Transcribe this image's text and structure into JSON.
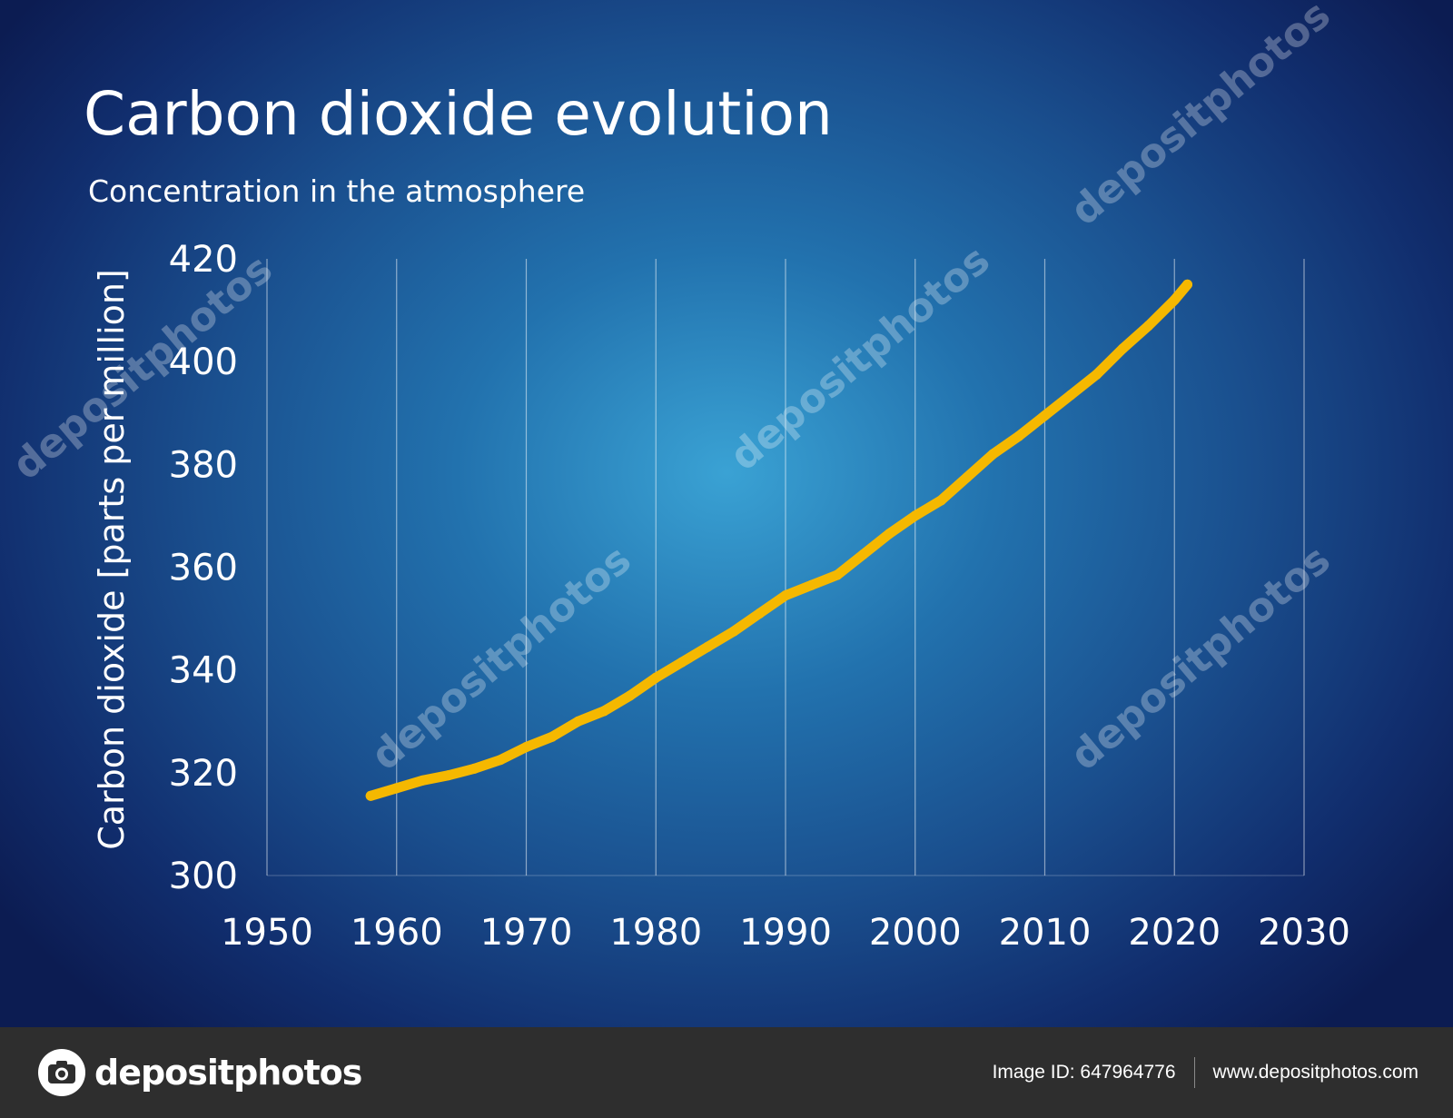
{
  "chart_data": {
    "type": "line",
    "title": "Carbon dioxide evolution",
    "subtitle": "Concentration in the atmosphere",
    "ylabel": "Carbon dioxide [parts per million]",
    "xlabel": "",
    "xlim": [
      1950,
      2030
    ],
    "ylim": [
      300,
      420
    ],
    "x_ticks": [
      1950,
      1960,
      1970,
      1980,
      1990,
      2000,
      2010,
      2020,
      2030
    ],
    "y_ticks": [
      300,
      320,
      340,
      360,
      380,
      400,
      420
    ],
    "grid": "vertical",
    "line_color": "#f5b800",
    "series": [
      {
        "x": [
          1958,
          1960,
          1962,
          1964,
          1966,
          1968,
          1970,
          1972,
          1974,
          1976,
          1978,
          1980,
          1982,
          1984,
          1986,
          1988,
          1990,
          1992,
          1994,
          1996,
          1998,
          2000,
          2002,
          2004,
          2006,
          2008,
          2010,
          2012,
          2014,
          2016,
          2018,
          2020,
          2021
        ],
        "y": [
          315.5,
          317.0,
          318.5,
          319.5,
          320.8,
          322.5,
          325.0,
          327.0,
          330.0,
          332.0,
          335.0,
          338.5,
          341.5,
          344.5,
          347.5,
          351.0,
          354.5,
          356.5,
          358.5,
          362.5,
          366.5,
          370.0,
          373.0,
          377.5,
          382.0,
          385.5,
          389.5,
          393.5,
          397.5,
          402.5,
          407.0,
          412.0,
          415.0
        ]
      }
    ]
  },
  "watermark": {
    "text": "depositphotos"
  },
  "footer": {
    "brand": "depositphotos",
    "image_id": "Image ID: 647964776",
    "url": "www.depositphotos.com"
  }
}
